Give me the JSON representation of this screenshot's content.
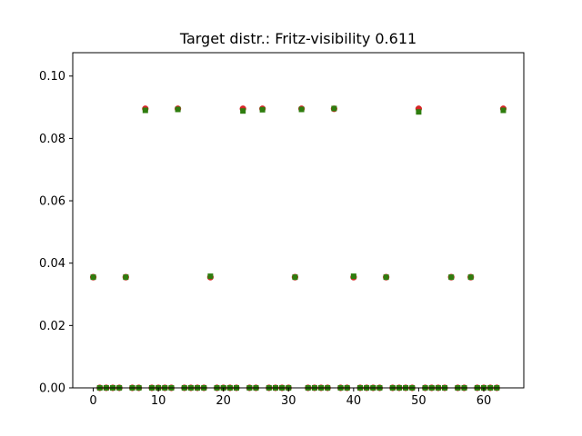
{
  "chart_data": {
    "type": "scatter",
    "title": "Target distr.: Fritz-visibility 0.611",
    "xlabel": "",
    "ylabel": "",
    "xlim": [
      -3.15,
      66.15
    ],
    "ylim": [
      0,
      0.1075
    ],
    "xticks": [
      0,
      10,
      20,
      30,
      40,
      50,
      60
    ],
    "yticks": [
      0.0,
      0.02,
      0.04,
      0.06,
      0.08,
      0.1
    ],
    "ytick_labels": [
      "0.00",
      "0.02",
      "0.04",
      "0.06",
      "0.08",
      "0.10"
    ],
    "grid": false,
    "legend": "none",
    "x": [
      0,
      1,
      2,
      3,
      4,
      5,
      6,
      7,
      8,
      9,
      10,
      11,
      12,
      13,
      14,
      15,
      16,
      17,
      18,
      19,
      20,
      21,
      22,
      23,
      24,
      25,
      26,
      27,
      28,
      29,
      30,
      31,
      32,
      33,
      34,
      35,
      36,
      37,
      38,
      39,
      40,
      41,
      42,
      43,
      44,
      45,
      46,
      47,
      48,
      49,
      50,
      51,
      52,
      53,
      54,
      55,
      56,
      57,
      58,
      59,
      60,
      61,
      62,
      63
    ],
    "series": [
      {
        "marker": "circle",
        "color": "#d62728",
        "values": [
          0.0355,
          0,
          0,
          0,
          0,
          0.0355,
          0,
          0,
          0.0895,
          0,
          0,
          0,
          0,
          0.0895,
          0,
          0,
          0,
          0,
          0.0355,
          0,
          0,
          0,
          0,
          0.0895,
          0,
          0,
          0.0895,
          0,
          0,
          0,
          0,
          0.0355,
          0.0895,
          0,
          0,
          0,
          0,
          0.0895,
          0,
          0,
          0.0355,
          0,
          0,
          0,
          0,
          0.0355,
          0,
          0,
          0,
          0,
          0.0895,
          0,
          0,
          0,
          0,
          0.0355,
          0,
          0,
          0.0355,
          0,
          0,
          0,
          0,
          0.0895
        ]
      },
      {
        "marker": "square",
        "color": "#2e7d0e",
        "values": [
          0.0355,
          0,
          0,
          0,
          0,
          0.0355,
          0,
          0,
          0.089,
          0,
          0,
          0,
          0,
          0.0893,
          0,
          0,
          0,
          0,
          0.0358,
          0,
          0,
          0,
          0,
          0.0888,
          0,
          0,
          0.0892,
          0,
          0,
          0,
          0,
          0.0355,
          0.0893,
          0,
          0,
          0,
          0,
          0.0896,
          0,
          0,
          0.0358,
          0,
          0,
          0,
          0,
          0.0355,
          0,
          0,
          0,
          0,
          0.0885,
          0,
          0,
          0,
          0,
          0.0355,
          0,
          0,
          0.0355,
          0,
          0,
          0,
          0,
          0.089
        ]
      }
    ]
  }
}
